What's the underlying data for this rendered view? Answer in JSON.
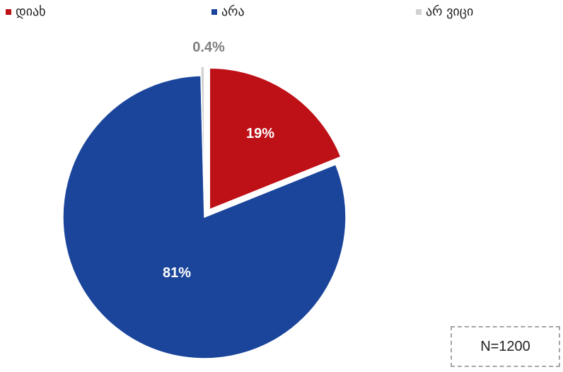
{
  "chart_data": {
    "type": "pie",
    "title": "",
    "slices": [
      {
        "label": "დიახ",
        "value": 19,
        "display": "19%",
        "color": "#BE1017",
        "label_color": "#ffffff",
        "exploded": true
      },
      {
        "label": "არა",
        "value": 81,
        "display": "81%",
        "color": "#1A459B",
        "label_color": "#ffffff",
        "exploded": false
      },
      {
        "label": "არ ვიცი",
        "value": 0.4,
        "display": "0.4%",
        "color": "#D2D2D2",
        "label_color": "#7F7F7F",
        "exploded": true
      }
    ],
    "legend": {
      "placement": "top"
    },
    "note": "N=1200"
  }
}
